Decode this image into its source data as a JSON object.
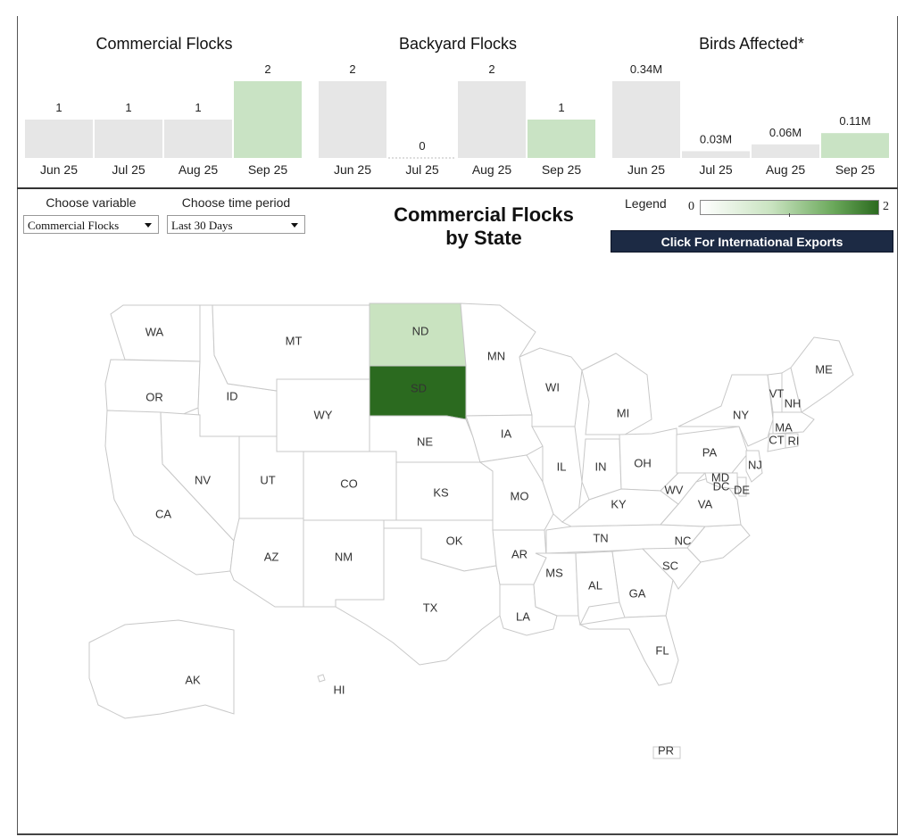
{
  "mini_charts": [
    {
      "title": "Commercial Flocks",
      "categories": [
        "Jun 25",
        "Jul 25",
        "Aug 25",
        "Sep 25"
      ],
      "values": [
        1,
        1,
        1,
        2
      ],
      "labels": [
        "1",
        "1",
        "1",
        "2"
      ],
      "highlight_index": 3,
      "ymax": 2
    },
    {
      "title": "Backyard Flocks",
      "categories": [
        "Jun 25",
        "Jul 25",
        "Aug 25",
        "Sep 25"
      ],
      "values": [
        2,
        0,
        2,
        1
      ],
      "labels": [
        "2",
        "0",
        "2",
        "1"
      ],
      "highlight_index": 3,
      "ymax": 2
    },
    {
      "title": "Birds Affected*",
      "categories": [
        "Jun 25",
        "Jul 25",
        "Aug 25",
        "Sep 25"
      ],
      "values": [
        0.34,
        0.03,
        0.06,
        0.11
      ],
      "labels": [
        "0.34M",
        "0.03M",
        "0.06M",
        "0.11M"
      ],
      "highlight_index": 3,
      "ymax": 0.34
    }
  ],
  "colors": {
    "bar_default": "#e6e6e6",
    "bar_highlight": "#c9e3c4",
    "map_low": "#c9e3c0",
    "map_high": "#2b6a1f",
    "button_bg": "#1c2a44"
  },
  "controls": {
    "variable_label": "Choose variable",
    "variable_value": "Commercial Flocks",
    "period_label": "Choose time period",
    "period_value": "Last 30 Days"
  },
  "map_title_line1": "Commercial Flocks",
  "map_title_line2": "by State",
  "legend": {
    "label": "Legend",
    "min": "0",
    "max": "2"
  },
  "export_button": "Click For International Exports",
  "chart_data": [
    {
      "type": "bar",
      "title": "Commercial Flocks",
      "categories": [
        "Jun 25",
        "Jul 25",
        "Aug 25",
        "Sep 25"
      ],
      "values": [
        1,
        1,
        1,
        2
      ]
    },
    {
      "type": "bar",
      "title": "Backyard Flocks",
      "categories": [
        "Jun 25",
        "Jul 25",
        "Aug 25",
        "Sep 25"
      ],
      "values": [
        2,
        0,
        2,
        1
      ]
    },
    {
      "type": "bar",
      "title": "Birds Affected*",
      "categories": [
        "Jun 25",
        "Jul 25",
        "Aug 25",
        "Sep 25"
      ],
      "values": [
        0.34,
        0.03,
        0.06,
        0.11
      ],
      "value_unit": "M"
    },
    {
      "type": "heatmap",
      "title": "Commercial Flocks by State",
      "legend_range": [
        0,
        2
      ],
      "values": {
        "ND": 1,
        "SD": 2
      },
      "states": [
        "WA",
        "OR",
        "CA",
        "ID",
        "NV",
        "MT",
        "WY",
        "UT",
        "AZ",
        "CO",
        "NM",
        "ND",
        "SD",
        "NE",
        "KS",
        "OK",
        "TX",
        "MN",
        "IA",
        "MO",
        "AR",
        "LA",
        "WI",
        "IL",
        "MI",
        "IN",
        "OH",
        "KY",
        "TN",
        "MS",
        "AL",
        "GA",
        "FL",
        "SC",
        "NC",
        "VA",
        "WV",
        "PA",
        "NY",
        "VT",
        "NH",
        "ME",
        "MA",
        "CT",
        "RI",
        "NJ",
        "DE",
        "MD",
        "DC",
        "AK",
        "HI",
        "PR"
      ]
    }
  ]
}
